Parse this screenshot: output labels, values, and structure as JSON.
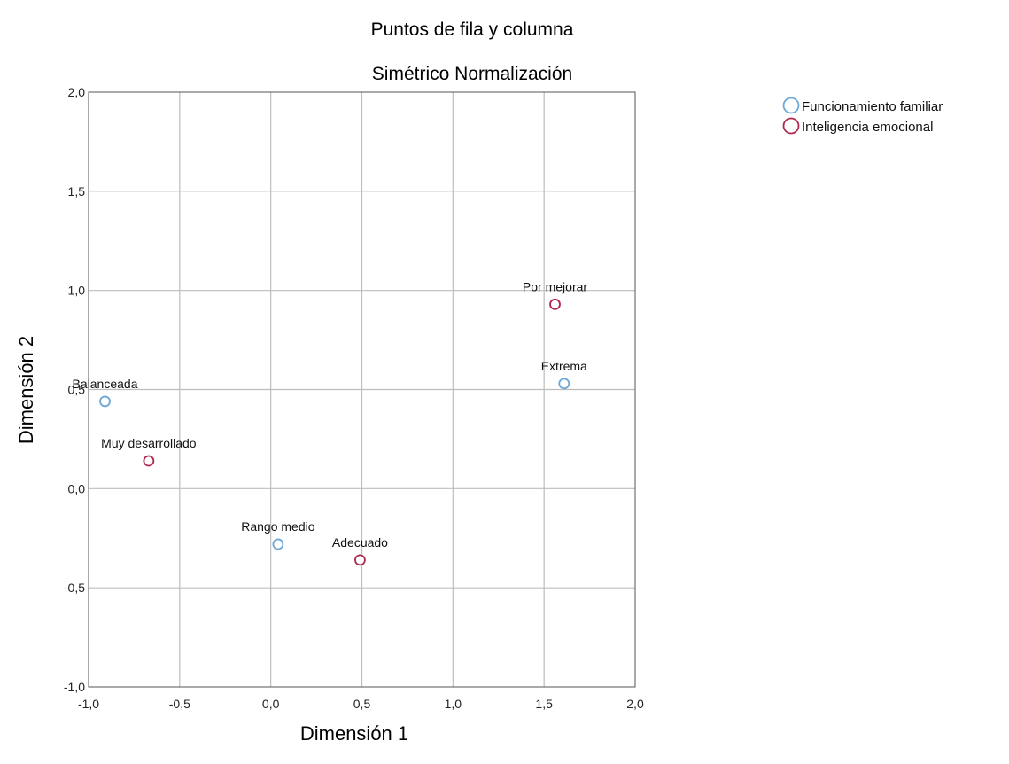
{
  "chart_data": {
    "type": "scatter",
    "title": "Puntos de fila y columna",
    "subtitle": "Simétrico Normalización",
    "xlabel": "Dimensión 1",
    "ylabel": "Dimensión 2",
    "xlim": [
      -1.0,
      2.0
    ],
    "ylim": [
      -1.0,
      2.0
    ],
    "xticks": [
      -1.0,
      -0.5,
      0.0,
      0.5,
      1.0,
      1.5,
      2.0
    ],
    "yticks": [
      -1.0,
      -0.5,
      0.0,
      0.5,
      1.0,
      1.5,
      2.0
    ],
    "xtick_labels": [
      "-1,0",
      "-0,5",
      "0,0",
      "0,5",
      "1,0",
      "1,5",
      "2,0"
    ],
    "ytick_labels": [
      "-1,0",
      "-0,5",
      "0,0",
      "0,5",
      "1,0",
      "1,5",
      "2,0"
    ],
    "grid": true,
    "legend_position": "top-right",
    "series": [
      {
        "name": "Funcionamiento familiar",
        "color": "#6fa8d6",
        "points": [
          {
            "label": "Balanceada",
            "x": -0.91,
            "y": 0.44
          },
          {
            "label": "Rango medio",
            "x": 0.04,
            "y": -0.28
          },
          {
            "label": "Extrema",
            "x": 1.61,
            "y": 0.53
          }
        ]
      },
      {
        "name": "Inteligencia emocional",
        "color": "#b0284f",
        "points": [
          {
            "label": "Muy desarrollado",
            "x": -0.67,
            "y": 0.14
          },
          {
            "label": "Adecuado",
            "x": 0.49,
            "y": -0.36
          },
          {
            "label": "Por mejorar",
            "x": 1.56,
            "y": 0.93
          }
        ]
      }
    ]
  }
}
